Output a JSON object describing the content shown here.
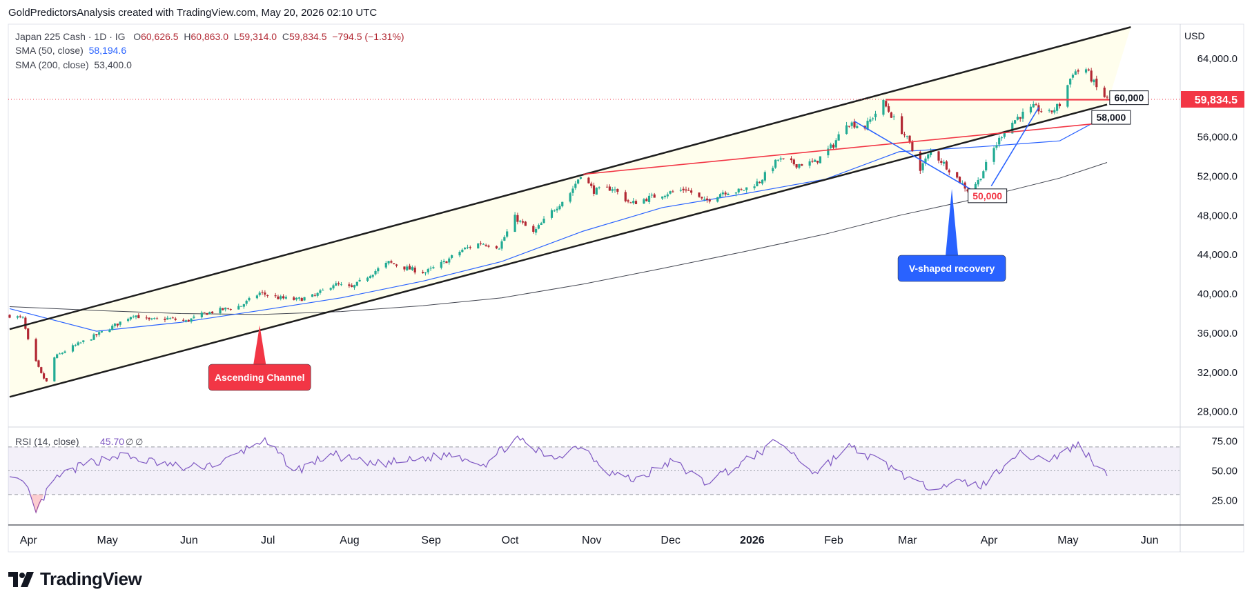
{
  "header": {
    "attribution": "GoldPredictorsAnalysis created with TradingView.com, May 20, 2026 02:10 UTC"
  },
  "legend": {
    "symbol": "Japan 225 Cash · 1D · IG",
    "open_label": "O",
    "open": "60,626.5",
    "high_label": "H",
    "high": "60,863.0",
    "low_label": "L",
    "low": "59,314.0",
    "close_label": "C",
    "close": "59,834.5",
    "change": "−794.5 (−1.31%)",
    "sma50_label": "SMA (50, close)",
    "sma50_value": "58,194.6",
    "sma200_label": "SMA (200, close)",
    "sma200_value": "53,400.0"
  },
  "currency": "USD",
  "logo": {
    "text": "TradingView"
  },
  "colors": {
    "up": "#22ab94",
    "down": "#b22833",
    "sma50": "#2962ff",
    "sma200": "#434651",
    "channel": "#1e1e1e",
    "red_line": "#f23645",
    "blue_line": "#2962ff",
    "rsi": "#7e57c2",
    "price_tag": "#f23645"
  },
  "chart_data": [
    {
      "type": "candlestick",
      "title": "",
      "xlabel": "",
      "ylabel": "",
      "ylim": [
        26500,
        67500
      ],
      "x_ticks": [
        "Apr",
        "May",
        "Jun",
        "Jul",
        "Aug",
        "Sep",
        "Oct",
        "Nov",
        "Dec",
        "2026",
        "Feb",
        "Mar",
        "Apr",
        "May",
        "Jun"
      ],
      "y_ticks": [
        28000,
        32000,
        36000,
        40000,
        44000,
        48000,
        52000,
        56000,
        60000,
        64000
      ],
      "y_tick_labels": [
        "28,000.0",
        "32,000.0",
        "36,000.0",
        "40,000.0",
        "44,000.0",
        "48,000.0",
        "52,000.0",
        "56,000.0",
        "60,000.0",
        "64,000.0"
      ],
      "grid": false,
      "last_price": 59834.5,
      "last_price_label": "59,834.5",
      "series_close": [
        {
          "date": "2025-03-28",
          "close": 37800
        },
        {
          "date": "2025-04-02",
          "close": 37500
        },
        {
          "date": "2025-04-04",
          "close": 35200
        },
        {
          "date": "2025-04-07",
          "close": 33000
        },
        {
          "date": "2025-04-09",
          "close": 31800
        },
        {
          "date": "2025-04-11",
          "close": 31000
        },
        {
          "date": "2025-04-14",
          "close": 33500
        },
        {
          "date": "2025-04-18",
          "close": 34200
        },
        {
          "date": "2025-04-24",
          "close": 35000
        },
        {
          "date": "2025-04-30",
          "close": 35800
        },
        {
          "date": "2025-05-07",
          "close": 36800
        },
        {
          "date": "2025-05-14",
          "close": 37900
        },
        {
          "date": "2025-05-20",
          "close": 37300
        },
        {
          "date": "2025-05-27",
          "close": 37500
        },
        {
          "date": "2025-06-03",
          "close": 37200
        },
        {
          "date": "2025-06-10",
          "close": 38000
        },
        {
          "date": "2025-06-17",
          "close": 38400
        },
        {
          "date": "2025-06-24",
          "close": 38800
        },
        {
          "date": "2025-07-01",
          "close": 40100
        },
        {
          "date": "2025-07-08",
          "close": 39600
        },
        {
          "date": "2025-07-15",
          "close": 39400
        },
        {
          "date": "2025-07-22",
          "close": 39800
        },
        {
          "date": "2025-07-29",
          "close": 41000
        },
        {
          "date": "2025-08-05",
          "close": 40600
        },
        {
          "date": "2025-08-12",
          "close": 42000
        },
        {
          "date": "2025-08-19",
          "close": 43200
        },
        {
          "date": "2025-08-26",
          "close": 42600
        },
        {
          "date": "2025-09-02",
          "close": 42200
        },
        {
          "date": "2025-09-09",
          "close": 43200
        },
        {
          "date": "2025-09-16",
          "close": 44500
        },
        {
          "date": "2025-09-23",
          "close": 45200
        },
        {
          "date": "2025-09-30",
          "close": 44800
        },
        {
          "date": "2025-10-06",
          "close": 47800
        },
        {
          "date": "2025-10-13",
          "close": 46200
        },
        {
          "date": "2025-10-20",
          "close": 48400
        },
        {
          "date": "2025-10-27",
          "close": 50300
        },
        {
          "date": "2025-10-31",
          "close": 52200
        },
        {
          "date": "2025-11-05",
          "close": 50500
        },
        {
          "date": "2025-11-12",
          "close": 50800
        },
        {
          "date": "2025-11-19",
          "close": 49200
        },
        {
          "date": "2025-11-26",
          "close": 49800
        },
        {
          "date": "2025-12-03",
          "close": 50300
        },
        {
          "date": "2025-12-10",
          "close": 50700
        },
        {
          "date": "2025-12-17",
          "close": 49400
        },
        {
          "date": "2025-12-24",
          "close": 50400
        },
        {
          "date": "2025-12-31",
          "close": 50500
        },
        {
          "date": "2026-01-07",
          "close": 51500
        },
        {
          "date": "2026-01-14",
          "close": 53700
        },
        {
          "date": "2026-01-21",
          "close": 53200
        },
        {
          "date": "2026-01-28",
          "close": 53400
        },
        {
          "date": "2026-02-04",
          "close": 55200
        },
        {
          "date": "2026-02-09",
          "close": 57500
        },
        {
          "date": "2026-02-16",
          "close": 57000
        },
        {
          "date": "2026-02-23",
          "close": 59500
        },
        {
          "date": "2026-02-27",
          "close": 57800
        },
        {
          "date": "2026-03-04",
          "close": 55800
        },
        {
          "date": "2026-03-09",
          "close": 52800
        },
        {
          "date": "2026-03-13",
          "close": 54500
        },
        {
          "date": "2026-03-18",
          "close": 53300
        },
        {
          "date": "2026-03-23",
          "close": 51800
        },
        {
          "date": "2026-03-27",
          "close": 50600
        },
        {
          "date": "2026-03-31",
          "close": 51500
        },
        {
          "date": "2026-04-06",
          "close": 54800
        },
        {
          "date": "2026-04-10",
          "close": 56700
        },
        {
          "date": "2026-04-15",
          "close": 58000
        },
        {
          "date": "2026-04-21",
          "close": 59000
        },
        {
          "date": "2026-04-27",
          "close": 58400
        },
        {
          "date": "2026-05-01",
          "close": 59300
        },
        {
          "date": "2026-05-06",
          "close": 62600
        },
        {
          "date": "2026-05-11",
          "close": 62900
        },
        {
          "date": "2026-05-15",
          "close": 61000
        },
        {
          "date": "2026-05-19",
          "close": 59834.5
        }
      ],
      "sma50": [
        {
          "date": "2025-03-28",
          "value": 38500
        },
        {
          "date": "2025-04-30",
          "value": 36200
        },
        {
          "date": "2025-06-01",
          "value": 37100
        },
        {
          "date": "2025-07-01",
          "value": 38300
        },
        {
          "date": "2025-08-01",
          "value": 39600
        },
        {
          "date": "2025-09-01",
          "value": 41300
        },
        {
          "date": "2025-10-01",
          "value": 43300
        },
        {
          "date": "2025-11-01",
          "value": 46400
        },
        {
          "date": "2025-12-01",
          "value": 48800
        },
        {
          "date": "2026-01-01",
          "value": 50200
        },
        {
          "date": "2026-02-01",
          "value": 51700
        },
        {
          "date": "2026-03-01",
          "value": 54500
        },
        {
          "date": "2026-04-01",
          "value": 55000
        },
        {
          "date": "2026-05-01",
          "value": 55600
        },
        {
          "date": "2026-05-19",
          "value": 58194.6
        }
      ],
      "sma200": [
        {
          "date": "2025-03-28",
          "value": 38700
        },
        {
          "date": "2025-05-01",
          "value": 38300
        },
        {
          "date": "2025-06-01",
          "value": 38000
        },
        {
          "date": "2025-07-01",
          "value": 37900
        },
        {
          "date": "2025-08-01",
          "value": 38200
        },
        {
          "date": "2025-09-01",
          "value": 38800
        },
        {
          "date": "2025-10-01",
          "value": 39600
        },
        {
          "date": "2025-11-01",
          "value": 41000
        },
        {
          "date": "2025-12-01",
          "value": 42600
        },
        {
          "date": "2026-01-01",
          "value": 44300
        },
        {
          "date": "2026-02-01",
          "value": 46100
        },
        {
          "date": "2026-03-01",
          "value": 48000
        },
        {
          "date": "2026-04-01",
          "value": 49800
        },
        {
          "date": "2026-05-01",
          "value": 51800
        },
        {
          "date": "2026-05-19",
          "value": 53400
        }
      ],
      "drawings": {
        "channel_upper": [
          {
            "date": "2025-03-28",
            "value": 36400
          },
          {
            "date": "2026-05-28",
            "value": 67200
          }
        ],
        "channel_lower": [
          {
            "date": "2025-03-28",
            "value": 29500
          },
          {
            "date": "2026-05-19",
            "value": 59300
          }
        ],
        "red_trendline": [
          {
            "date": "2025-11-01",
            "value": 52200
          },
          {
            "date": "2026-05-20",
            "value": 57500
          }
        ],
        "red_resistance": [
          {
            "date": "2026-02-24",
            "value": 59800
          },
          {
            "date": "2026-05-20",
            "value": 59800
          }
        ],
        "blue_down_leg": [
          {
            "date": "2026-02-12",
            "value": 57600
          },
          {
            "date": "2026-03-28",
            "value": 50700
          }
        ],
        "blue_up_leg": [
          {
            "date": "2026-04-05",
            "value": 51000
          },
          {
            "date": "2026-04-23",
            "value": 59000
          }
        ]
      },
      "annotations": [
        {
          "text": "Ascending Channel",
          "date": "2025-07-01",
          "value": 36800,
          "color": "#f23645"
        },
        {
          "text": "V-shaped recovery",
          "date": "2026-03-21",
          "value": 50700,
          "color": "#2962ff"
        },
        {
          "text": "60,000",
          "date": "2026-05-20",
          "value": 60000
        },
        {
          "text": "58,000",
          "date": "2026-05-20",
          "value": 58000
        },
        {
          "text": "50,000",
          "date": "2026-04-03",
          "value": 50000
        }
      ]
    },
    {
      "type": "line",
      "title": "",
      "name": "RSI (14, close)",
      "value_label": "45.70",
      "extra_labels": [
        "∅",
        "∅"
      ],
      "ylim": [
        5,
        85
      ],
      "y_ticks": [
        25,
        50,
        75
      ],
      "y_tick_labels": [
        "25.00",
        "50.00",
        "75.00"
      ],
      "bands": [
        30,
        50,
        70
      ],
      "values": [
        {
          "date": "2025-03-28",
          "value": 49
        },
        {
          "date": "2025-04-04",
          "value": 33
        },
        {
          "date": "2025-04-07",
          "value": 14
        },
        {
          "date": "2025-04-10",
          "value": 28
        },
        {
          "date": "2025-04-15",
          "value": 44
        },
        {
          "date": "2025-04-25",
          "value": 55
        },
        {
          "date": "2025-05-08",
          "value": 63
        },
        {
          "date": "2025-05-20",
          "value": 58
        },
        {
          "date": "2025-06-03",
          "value": 52
        },
        {
          "date": "2025-06-17",
          "value": 57
        },
        {
          "date": "2025-07-02",
          "value": 76
        },
        {
          "date": "2025-07-15",
          "value": 50
        },
        {
          "date": "2025-07-28",
          "value": 64
        },
        {
          "date": "2025-08-12",
          "value": 55
        },
        {
          "date": "2025-08-26",
          "value": 58
        },
        {
          "date": "2025-09-12",
          "value": 64
        },
        {
          "date": "2025-09-25",
          "value": 56
        },
        {
          "date": "2025-10-06",
          "value": 77
        },
        {
          "date": "2025-10-20",
          "value": 60
        },
        {
          "date": "2025-10-31",
          "value": 72
        },
        {
          "date": "2025-11-10",
          "value": 50
        },
        {
          "date": "2025-11-20",
          "value": 42
        },
        {
          "date": "2025-12-05",
          "value": 58
        },
        {
          "date": "2025-12-17",
          "value": 40
        },
        {
          "date": "2025-12-31",
          "value": 56
        },
        {
          "date": "2026-01-14",
          "value": 75
        },
        {
          "date": "2026-01-28",
          "value": 48
        },
        {
          "date": "2026-02-10",
          "value": 70
        },
        {
          "date": "2026-02-27",
          "value": 52
        },
        {
          "date": "2026-03-09",
          "value": 37
        },
        {
          "date": "2026-03-23",
          "value": 40
        },
        {
          "date": "2026-04-02",
          "value": 38
        },
        {
          "date": "2026-04-14",
          "value": 64
        },
        {
          "date": "2026-04-28",
          "value": 60
        },
        {
          "date": "2026-05-08",
          "value": 72
        },
        {
          "date": "2026-05-19",
          "value": 45.7
        }
      ]
    }
  ]
}
